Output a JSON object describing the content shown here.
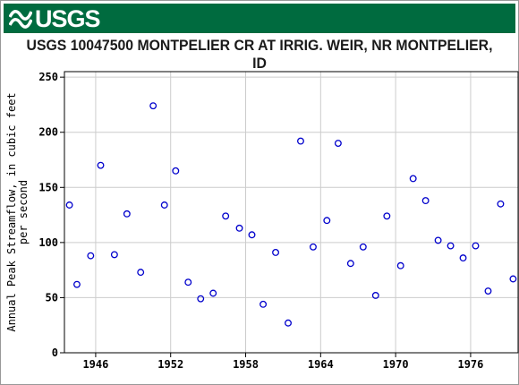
{
  "header": {
    "logo_text": "USGS",
    "logo_icon": "usgs-wave-icon",
    "banner_color": "#006b3f"
  },
  "chart_data": {
    "type": "scatter",
    "title": "USGS 10047500 MONTPELIER CR AT IRRIG. WEIR, NR MONTPELIER, ID",
    "xlabel": "",
    "ylabel_lines": [
      "Annual Peak Streamflow, in cubic feet",
      "per second"
    ],
    "xlim": [
      1943.5,
      1979.8
    ],
    "ylim": [
      0,
      255
    ],
    "xticks": [
      1946,
      1952,
      1958,
      1964,
      1970,
      1976
    ],
    "yticks": [
      0,
      50,
      100,
      150,
      200,
      250
    ],
    "grid": true,
    "marker": "open-circle",
    "marker_color": "#0000cc",
    "points": [
      {
        "x": 1943.9,
        "y": 134
      },
      {
        "x": 1944.5,
        "y": 62
      },
      {
        "x": 1945.6,
        "y": 88
      },
      {
        "x": 1946.4,
        "y": 170
      },
      {
        "x": 1947.5,
        "y": 89
      },
      {
        "x": 1948.5,
        "y": 126
      },
      {
        "x": 1949.6,
        "y": 73
      },
      {
        "x": 1950.6,
        "y": 224
      },
      {
        "x": 1951.5,
        "y": 134
      },
      {
        "x": 1952.4,
        "y": 165
      },
      {
        "x": 1953.4,
        "y": 64
      },
      {
        "x": 1954.4,
        "y": 49
      },
      {
        "x": 1955.4,
        "y": 54
      },
      {
        "x": 1956.4,
        "y": 124
      },
      {
        "x": 1957.5,
        "y": 113
      },
      {
        "x": 1958.5,
        "y": 107
      },
      {
        "x": 1959.4,
        "y": 44
      },
      {
        "x": 1960.4,
        "y": 91
      },
      {
        "x": 1961.4,
        "y": 27
      },
      {
        "x": 1962.4,
        "y": 192
      },
      {
        "x": 1963.4,
        "y": 96
      },
      {
        "x": 1964.5,
        "y": 120
      },
      {
        "x": 1965.4,
        "y": 190
      },
      {
        "x": 1966.4,
        "y": 81
      },
      {
        "x": 1967.4,
        "y": 96
      },
      {
        "x": 1968.4,
        "y": 52
      },
      {
        "x": 1969.3,
        "y": 124
      },
      {
        "x": 1970.4,
        "y": 79
      },
      {
        "x": 1971.4,
        "y": 158
      },
      {
        "x": 1972.4,
        "y": 138
      },
      {
        "x": 1973.4,
        "y": 102
      },
      {
        "x": 1974.4,
        "y": 97
      },
      {
        "x": 1975.4,
        "y": 86
      },
      {
        "x": 1976.4,
        "y": 97
      },
      {
        "x": 1977.4,
        "y": 56
      },
      {
        "x": 1978.4,
        "y": 135
      },
      {
        "x": 1979.4,
        "y": 67
      }
    ]
  }
}
